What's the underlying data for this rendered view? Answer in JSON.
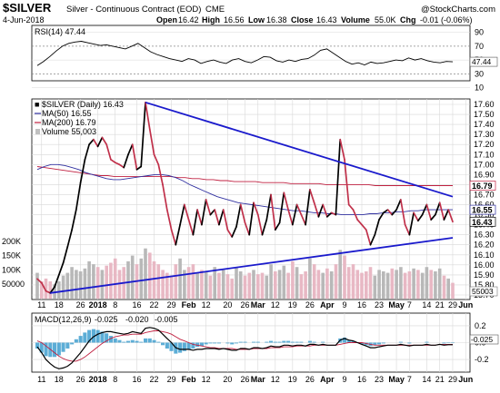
{
  "chart_data": {
    "type": "line",
    "header": {
      "symbol": "$SILVER",
      "description": "Silver - Continuous Contract (EOD)",
      "exchange": "CME",
      "date": "4-Jun-2018",
      "open_label": "Open",
      "open": "16.42",
      "high_label": "High",
      "high": "16.56",
      "low_label": "Low",
      "low": "16.38",
      "close_label": "Close",
      "close": "16.43",
      "volume_label": "Volume",
      "volume": "55.0K",
      "chg_label": "Chg",
      "chg": "-0.01 (-0.06%)",
      "watermark": "@StockCharts.com"
    },
    "rsi": {
      "label": "RSI(14) 47.44",
      "value": 47.44,
      "value_tag": "47.44",
      "ylim": [
        20,
        100
      ],
      "ticks": [
        "90",
        "70",
        "50",
        "30",
        "10"
      ],
      "ref_lines": [
        70,
        30
      ],
      "values": [
        42,
        48,
        55,
        63,
        70,
        74,
        76,
        77,
        75,
        73,
        71,
        72,
        70,
        68,
        66,
        70,
        74,
        68,
        62,
        58,
        55,
        52,
        50,
        48,
        52,
        50,
        45,
        48,
        50,
        47,
        45,
        50,
        52,
        48,
        46,
        50,
        55,
        54,
        49,
        47,
        50,
        48,
        51,
        52,
        57,
        64,
        66,
        60,
        54,
        48,
        44,
        46,
        43,
        47,
        45,
        46,
        48,
        50,
        49,
        53,
        50,
        52,
        49,
        47,
        46,
        48,
        47.44
      ]
    },
    "price": {
      "legend": [
        {
          "text": "$SILVER (Daily) 16.43",
          "color": "#000000"
        },
        {
          "text": "MA(50) 16.55",
          "color": "#3030a0"
        },
        {
          "text": "MA(200) 16.79",
          "color": "#c02040"
        },
        {
          "text": "Volume 55,003",
          "color": "#a0a0a0"
        }
      ],
      "ylim": [
        15.7,
        17.6
      ],
      "ticks": [
        "17.60",
        "17.50",
        "17.40",
        "17.30",
        "17.20",
        "17.10",
        "17.00",
        "16.90",
        "16.80",
        "16.70",
        "16.60",
        "16.50",
        "16.40",
        "16.30",
        "16.20",
        "16.10",
        "16.00",
        "15.90",
        "15.80",
        "15.70"
      ],
      "last_tags": [
        {
          "text": "16.79",
          "value": 16.79,
          "bg": "#ffffff",
          "fg": "#c02040"
        },
        {
          "text": "16.55",
          "value": 16.55,
          "bg": "#ffffff",
          "fg": "#3030a0"
        },
        {
          "text": "16.43",
          "value": 16.43,
          "bg": "#ffffff",
          "fg": "#000000"
        }
      ],
      "close": [
        15.86,
        15.82,
        15.74,
        15.72,
        15.78,
        15.9,
        16.02,
        16.18,
        16.35,
        16.55,
        16.82,
        17.05,
        17.2,
        17.25,
        17.18,
        17.27,
        17.2,
        17.05,
        17.02,
        17.0,
        16.97,
        17.1,
        17.2,
        16.95,
        16.98,
        17.62,
        17.35,
        17.1,
        17.0,
        16.8,
        16.55,
        16.35,
        16.2,
        16.4,
        16.6,
        16.45,
        16.3,
        16.55,
        16.4,
        16.65,
        16.5,
        16.55,
        16.4,
        16.55,
        16.35,
        16.28,
        16.38,
        16.6,
        16.42,
        16.3,
        16.62,
        16.5,
        16.3,
        16.45,
        16.7,
        16.35,
        16.42,
        16.72,
        16.55,
        16.4,
        16.6,
        16.5,
        16.4,
        16.75,
        16.62,
        16.48,
        16.6,
        16.48,
        16.52,
        16.5,
        17.25,
        17.05,
        16.6,
        16.55,
        16.45,
        16.4,
        16.35,
        16.2,
        16.3,
        16.45,
        16.52,
        16.55,
        16.5,
        16.55,
        16.65,
        16.4,
        16.3,
        16.52,
        16.44,
        16.5,
        16.6,
        16.45,
        16.5,
        16.62,
        16.45,
        16.55,
        16.43
      ],
      "ma50": [
        16.95,
        16.98,
        17.0,
        17.0,
        16.99,
        16.97,
        16.95,
        16.92,
        16.9,
        16.88,
        16.86,
        16.85,
        16.85,
        16.86,
        16.87,
        16.88,
        16.89,
        16.9,
        16.9,
        16.89,
        16.87,
        16.84,
        16.8,
        16.77,
        16.74,
        16.71,
        16.68,
        16.66,
        16.64,
        16.62,
        16.61,
        16.6,
        16.59,
        16.58,
        16.57,
        16.56,
        16.55,
        16.54,
        16.54,
        16.53,
        16.52,
        16.52,
        16.51,
        16.51,
        16.5,
        16.5,
        16.5,
        16.5,
        16.51,
        16.51,
        16.52,
        16.52,
        16.53,
        16.53,
        16.54,
        16.54,
        16.55,
        16.55,
        16.55,
        16.55,
        16.55
      ],
      "ma200": [
        16.98,
        16.97,
        16.96,
        16.95,
        16.94,
        16.93,
        16.92,
        16.91,
        16.9,
        16.89,
        16.89,
        16.88,
        16.88,
        16.88,
        16.88,
        16.88,
        16.88,
        16.88,
        16.88,
        16.88,
        16.87,
        16.87,
        16.86,
        16.86,
        16.85,
        16.85,
        16.84,
        16.84,
        16.83,
        16.83,
        16.83,
        16.83,
        16.82,
        16.82,
        16.82,
        16.82,
        16.81,
        16.81,
        16.81,
        16.81,
        16.81,
        16.8,
        16.8,
        16.8,
        16.8,
        16.8,
        16.8,
        16.8,
        16.79,
        16.79,
        16.79,
        16.79,
        16.79,
        16.79,
        16.79,
        16.79,
        16.79,
        16.79,
        16.79,
        16.79
      ],
      "trendlines": [
        {
          "from_index": 25,
          "from_value": 17.62,
          "to_index": 96,
          "to_value": 16.68,
          "color": "#1a1acc"
        },
        {
          "from_index": 3,
          "from_value": 15.72,
          "to_index": 96,
          "to_value": 16.27,
          "color": "#1a1acc"
        }
      ]
    },
    "volume": {
      "ticks": [
        "200K",
        "150K",
        "100K",
        "50000"
      ],
      "ylim": [
        0,
        250000
      ],
      "last_tag": "55003",
      "values": [
        90000,
        60000,
        70000,
        60000,
        50000,
        60000,
        80000,
        90000,
        110000,
        100000,
        95000,
        105000,
        130000,
        120000,
        110000,
        100000,
        115000,
        125000,
        140000,
        100000,
        110000,
        130000,
        150000,
        120000,
        140000,
        175000,
        160000,
        130000,
        120000,
        100000,
        90000,
        80000,
        120000,
        140000,
        100000,
        110000,
        120000,
        90000,
        100000,
        95000,
        80000,
        110000,
        90000,
        100000,
        85000,
        70000,
        110000,
        95000,
        80000,
        90000,
        100000,
        85000,
        90000,
        80000,
        120000,
        95000,
        100000,
        115000,
        90000,
        130000,
        110000,
        85000,
        95000,
        140000,
        120000,
        100000,
        90000,
        105000,
        95000,
        120000,
        170000,
        150000,
        110000,
        120000,
        100000,
        90000,
        95000,
        110000,
        80000,
        100000,
        95000,
        90000,
        105000,
        100000,
        110000,
        90000,
        95000,
        105000,
        100000,
        90000,
        110000,
        100000,
        95000,
        105000,
        80000,
        70000,
        55003
      ]
    },
    "macd": {
      "label_prefix": "MACD(12,26,9)",
      "macd_value": "-0.025",
      "signal_value": "-0.020",
      "hist_value": "-0.005",
      "macd_color": "#000000",
      "signal_color": "#c02040",
      "hist_color": "#3399cc",
      "value_tag": "-0.025",
      "ylim": [
        -0.35,
        0.35
      ],
      "ticks": [
        "0.2",
        "0.0",
        "-0.2"
      ],
      "macd": [
        -0.05,
        -0.12,
        -0.2,
        -0.25,
        -0.29,
        -0.31,
        -0.3,
        -0.28,
        -0.24,
        -0.18,
        -0.12,
        -0.05,
        0.02,
        0.07,
        0.1,
        0.12,
        0.13,
        0.13,
        0.12,
        0.11,
        0.1,
        0.11,
        0.13,
        0.12,
        0.11,
        0.17,
        0.18,
        0.17,
        0.15,
        0.1,
        0.05,
        0.0,
        -0.06,
        -0.08,
        -0.08,
        -0.08,
        -0.09,
        -0.08,
        -0.08,
        -0.07,
        -0.07,
        -0.07,
        -0.08,
        -0.07,
        -0.08,
        -0.09,
        -0.09,
        -0.07,
        -0.07,
        -0.08,
        -0.06,
        -0.06,
        -0.07,
        -0.06,
        -0.04,
        -0.05,
        -0.05,
        -0.03,
        -0.03,
        -0.04,
        -0.03,
        -0.03,
        -0.04,
        -0.02,
        -0.02,
        -0.03,
        -0.02,
        -0.03,
        -0.03,
        -0.03,
        0.03,
        0.05,
        0.03,
        0.02,
        0.0,
        -0.02,
        -0.04,
        -0.06,
        -0.06,
        -0.05,
        -0.04,
        -0.03,
        -0.03,
        -0.03,
        -0.02,
        -0.03,
        -0.04,
        -0.03,
        -0.03,
        -0.03,
        -0.02,
        -0.03,
        -0.03,
        -0.02,
        -0.03,
        -0.025,
        -0.025
      ],
      "signal": [
        0.02,
        -0.0,
        -0.04,
        -0.08,
        -0.12,
        -0.16,
        -0.19,
        -0.21,
        -0.22,
        -0.22,
        -0.2,
        -0.17,
        -0.13,
        -0.09,
        -0.05,
        -0.01,
        0.02,
        0.05,
        0.07,
        0.08,
        0.09,
        0.09,
        0.1,
        0.1,
        0.1,
        0.12,
        0.13,
        0.14,
        0.14,
        0.13,
        0.12,
        0.1,
        0.07,
        0.04,
        0.02,
        0.0,
        -0.02,
        -0.03,
        -0.04,
        -0.05,
        -0.06,
        -0.06,
        -0.07,
        -0.07,
        -0.07,
        -0.07,
        -0.08,
        -0.08,
        -0.08,
        -0.08,
        -0.07,
        -0.07,
        -0.07,
        -0.07,
        -0.06,
        -0.06,
        -0.06,
        -0.05,
        -0.05,
        -0.05,
        -0.04,
        -0.04,
        -0.04,
        -0.04,
        -0.03,
        -0.03,
        -0.03,
        -0.03,
        -0.03,
        -0.03,
        -0.02,
        -0.01,
        0.0,
        0.0,
        0.0,
        -0.0,
        -0.01,
        -0.02,
        -0.03,
        -0.03,
        -0.03,
        -0.03,
        -0.03,
        -0.03,
        -0.03,
        -0.03,
        -0.03,
        -0.03,
        -0.03,
        -0.03,
        -0.03,
        -0.03,
        -0.03,
        -0.02,
        -0.02,
        -0.02,
        -0.02
      ],
      "hist": [
        -0.07,
        -0.12,
        -0.16,
        -0.17,
        -0.17,
        -0.15,
        -0.11,
        -0.07,
        -0.02,
        0.04,
        0.08,
        0.12,
        0.15,
        0.16,
        0.15,
        0.13,
        0.11,
        0.08,
        0.05,
        0.03,
        0.01,
        0.02,
        0.03,
        0.02,
        0.01,
        0.05,
        0.05,
        0.03,
        0.01,
        -0.03,
        -0.07,
        -0.1,
        -0.13,
        -0.12,
        -0.1,
        -0.08,
        -0.07,
        -0.05,
        -0.04,
        -0.02,
        -0.01,
        -0.01,
        -0.01,
        0.0,
        -0.01,
        -0.02,
        -0.01,
        0.01,
        0.01,
        0.0,
        0.01,
        0.01,
        0.0,
        0.01,
        0.02,
        0.01,
        0.01,
        0.02,
        0.02,
        0.01,
        0.01,
        0.01,
        0.0,
        0.02,
        0.01,
        0.0,
        0.01,
        0.0,
        0.0,
        0.0,
        0.05,
        0.06,
        0.03,
        0.02,
        0.0,
        -0.02,
        -0.03,
        -0.04,
        -0.03,
        -0.02,
        -0.01,
        0.0,
        0.0,
        0.0,
        0.01,
        0.0,
        -0.01,
        0.0,
        0.0,
        0.0,
        0.01,
        0.0,
        0.0,
        0.0,
        -0.01,
        -0.005,
        -0.005
      ]
    },
    "x_labels": [
      {
        "text": "11",
        "index": 1,
        "bold": false
      },
      {
        "text": "18",
        "index": 5,
        "bold": false
      },
      {
        "text": "26",
        "index": 10,
        "bold": false
      },
      {
        "text": "2018",
        "index": 14,
        "bold": true
      },
      {
        "text": "8",
        "index": 18,
        "bold": false
      },
      {
        "text": "16",
        "index": 23,
        "bold": false
      },
      {
        "text": "22",
        "index": 27,
        "bold": false
      },
      {
        "text": "29",
        "index": 31,
        "bold": false
      },
      {
        "text": "Feb",
        "index": 35,
        "bold": true
      },
      {
        "text": "12",
        "index": 39,
        "bold": false
      },
      {
        "text": "20",
        "index": 44,
        "bold": false
      },
      {
        "text": "26",
        "index": 48,
        "bold": false
      },
      {
        "text": "Mar",
        "index": 51,
        "bold": true
      },
      {
        "text": "12",
        "index": 55,
        "bold": false
      },
      {
        "text": "19",
        "index": 59,
        "bold": false
      },
      {
        "text": "26",
        "index": 63,
        "bold": false
      },
      {
        "text": "Apr",
        "index": 67,
        "bold": true
      },
      {
        "text": "9",
        "index": 71,
        "bold": false
      },
      {
        "text": "16",
        "index": 75,
        "bold": false
      },
      {
        "text": "23",
        "index": 79,
        "bold": false
      },
      {
        "text": "May",
        "index": 83,
        "bold": true
      },
      {
        "text": "7",
        "index": 86,
        "bold": false
      },
      {
        "text": "14",
        "index": 90,
        "bold": false
      },
      {
        "text": "21",
        "index": 93,
        "bold": false
      },
      {
        "text": "29",
        "index": 96,
        "bold": false
      },
      {
        "text": "Jun",
        "index": 99,
        "bold": true
      }
    ]
  }
}
